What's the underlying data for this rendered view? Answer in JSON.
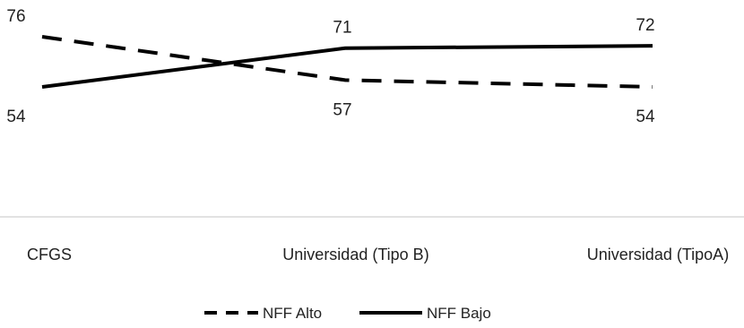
{
  "chart_data": {
    "type": "line",
    "title": "",
    "xlabel": "",
    "ylabel": "",
    "categories": [
      "CFGS",
      "Universidad (Tipo B)",
      "Universidad (TipoA)"
    ],
    "series": [
      {
        "name": "NFF Alto",
        "values": [
          76,
          57,
          54
        ],
        "line_style": "dashed",
        "color": "#000000"
      },
      {
        "name": "NFF Bajo",
        "values": [
          54,
          71,
          72
        ],
        "line_style": "solid",
        "color": "#000000"
      }
    ],
    "ylim": [
      0,
      90
    ],
    "grid": false,
    "legend_position": "bottom"
  }
}
